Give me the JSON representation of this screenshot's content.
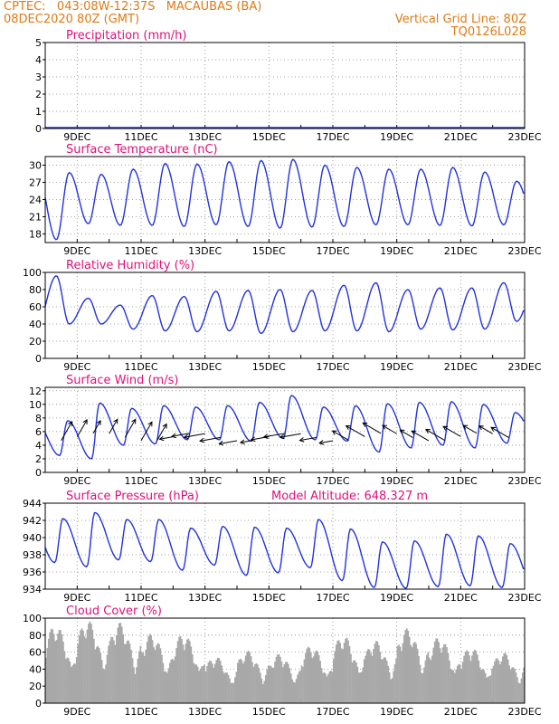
{
  "header": {
    "line1_left": "CPTEC:   043:08W-12:37S   MACAUBAS (BA)",
    "line2_left": "08DEC2020 80Z (GMT)",
    "line1_right": "Vertical Grid Line: 80Z",
    "line2_right": "TQ0126L028"
  },
  "colors": {
    "header": "#e07a14",
    "title": "#e0107a",
    "line": "#2233dd",
    "bars": "#a8a8a8",
    "arrows": "#000000"
  },
  "chart_data": [
    {
      "type": "line",
      "title": "Precipitation (mm/h)",
      "x_tick_labels": [
        "9DEC",
        "11DEC",
        "13DEC",
        "15DEC",
        "17DEC",
        "19DEC",
        "21DEC",
        "23DEC"
      ],
      "x_range_days": [
        8.0,
        23.0
      ],
      "ylim": [
        0,
        5
      ],
      "yticks": [
        0,
        1,
        2,
        3,
        4,
        5
      ],
      "grid": true,
      "values_note_free": true,
      "values": [
        0,
        0
      ]
    },
    {
      "type": "line",
      "title": "Surface Temperature (nC)",
      "x_tick_labels": [
        "9DEC",
        "11DEC",
        "13DEC",
        "15DEC",
        "17DEC",
        "19DEC",
        "21DEC",
        "23DEC"
      ],
      "ylim": [
        16.5,
        31.5
      ],
      "yticks": [
        18,
        21,
        24,
        27,
        30
      ],
      "grid": true,
      "daily_min": [
        17.0,
        19.8,
        19.5,
        19.5,
        19.3,
        19.6,
        19.3,
        19.0,
        19.2,
        19.3,
        19.6,
        19.6,
        19.5,
        19.4,
        19.6
      ],
      "daily_max": [
        28.7,
        28.4,
        29.3,
        30.3,
        30.2,
        30.6,
        30.8,
        31.0,
        30.0,
        29.6,
        29.3,
        29.3,
        29.6,
        28.8,
        27.2
      ]
    },
    {
      "type": "line",
      "title": "Relative Humidity (%)",
      "x_tick_labels": [
        "9DEC",
        "11DEC",
        "13DEC",
        "15DEC",
        "17DEC",
        "19DEC",
        "21DEC",
        "23DEC"
      ],
      "ylim": [
        0,
        100
      ],
      "yticks": [
        0,
        20,
        40,
        60,
        80,
        100
      ],
      "grid": true,
      "daily_min": [
        40,
        40,
        34,
        32,
        31,
        32,
        29,
        31,
        32,
        32,
        31,
        34,
        33,
        34,
        43
      ],
      "daily_max": [
        96,
        70,
        62,
        73,
        72,
        78,
        79,
        80,
        79,
        85,
        88,
        80,
        82,
        82,
        88
      ]
    },
    {
      "type": "line",
      "title": "Surface Wind (m/s)",
      "x_tick_labels": [
        "9DEC",
        "11DEC",
        "13DEC",
        "15DEC",
        "17DEC",
        "19DEC",
        "21DEC",
        "23DEC"
      ],
      "ylim": [
        0,
        12.5
      ],
      "yticks": [
        0,
        2,
        4,
        6,
        8,
        10,
        12
      ],
      "grid": true,
      "daily_min": [
        2.5,
        2.0,
        4.0,
        4.2,
        4.8,
        4.8,
        4.6,
        5.0,
        4.8,
        4.6,
        3.0,
        3.6,
        4.0,
        3.6,
        4.3
      ],
      "daily_max": [
        7.6,
        10.2,
        9.4,
        9.8,
        9.6,
        9.8,
        10.3,
        11.3,
        9.6,
        9.8,
        10.1,
        10.3,
        10.4,
        10.0,
        8.8
      ]
    },
    {
      "type": "line",
      "title": "Surface Pressure (hPa)",
      "annotation": "Model Altitude: 648.327 m",
      "x_tick_labels": [
        "9DEC",
        "11DEC",
        "13DEC",
        "15DEC",
        "17DEC",
        "19DEC",
        "21DEC",
        "23DEC"
      ],
      "ylim": [
        934,
        944
      ],
      "yticks": [
        934,
        936,
        938,
        940,
        942,
        944
      ],
      "grid": true,
      "daily_min": [
        937.1,
        936.6,
        937.4,
        937.2,
        936.2,
        936.8,
        935.6,
        935.9,
        936.5,
        935.0,
        934.2,
        934.1,
        934.3,
        934.4,
        934.2
      ],
      "daily_max": [
        942.2,
        942.9,
        942.1,
        942.1,
        941.1,
        941.3,
        941.2,
        941.1,
        942.1,
        941.0,
        939.5,
        939.6,
        940.4,
        940.2,
        939.3
      ]
    },
    {
      "type": "bar",
      "title": "Cloud Cover (%)",
      "x_tick_labels": [
        "9DEC",
        "11DEC",
        "13DEC",
        "15DEC",
        "17DEC",
        "19DEC",
        "21DEC",
        "23DEC"
      ],
      "ylim": [
        0,
        100
      ],
      "yticks": [
        0,
        20,
        40,
        60,
        80,
        100
      ],
      "grid": true,
      "daily_peak": [
        92,
        98,
        95,
        82,
        82,
        55,
        62,
        58,
        68,
        80,
        74,
        88,
        78,
        66,
        60
      ]
    }
  ]
}
